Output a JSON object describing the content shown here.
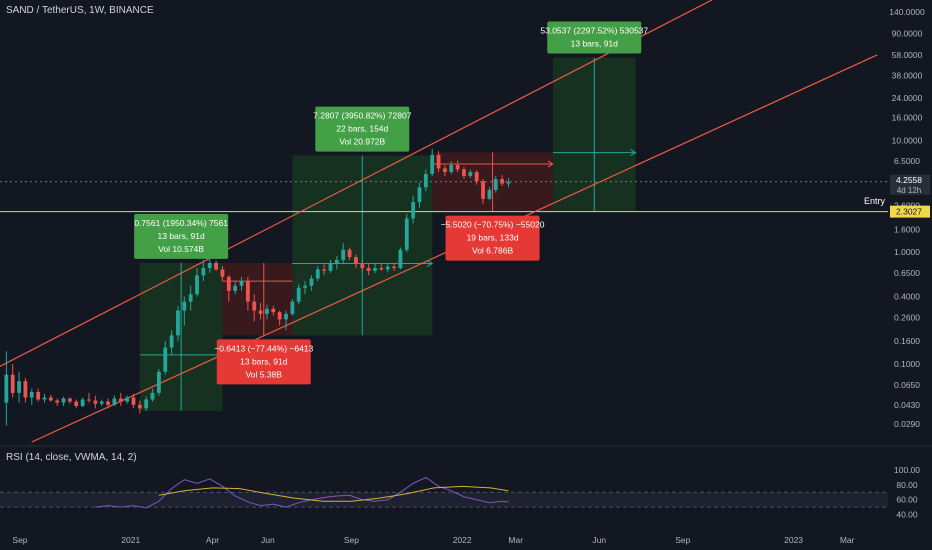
{
  "header": {
    "title": "SAND / TetherUS, 1W, BINANCE"
  },
  "rsi": {
    "title": "RSI (14, close, VWMA, 14, 2)",
    "ticks": [
      "100.00",
      "80.00",
      "60.00",
      "40.00"
    ]
  },
  "price_axis": {
    "ticks": [
      "140.0000",
      "90.0000",
      "58.0000",
      "38.0000",
      "24.0000",
      "16.0000",
      "10.0000",
      "6.5000",
      "2.6000",
      "1.6000",
      "1.0000",
      "0.6500",
      "0.4000",
      "0.2600",
      "0.1600",
      "0.1000",
      "0.0650",
      "0.0430",
      "0.0290"
    ],
    "current_price": "4.2558",
    "countdown": "4d 12h",
    "entry_price": "2.3027",
    "entry_label": "Entry"
  },
  "time_axis": {
    "ticks": [
      "Sep",
      "2021",
      "Apr",
      "Jun",
      "Sep",
      "2022",
      "Mar",
      "Jun",
      "Sep",
      "2023",
      "Mar"
    ]
  },
  "colors": {
    "background": "#131722",
    "up": "#26a69a",
    "down": "#ef5350",
    "channel": "#f05a45",
    "entry_line": "#f0d84a",
    "profit_label": "#43a047",
    "loss_label": "#e53935",
    "profit_zone": "#163321",
    "loss_zone": "#3a1a1e",
    "rsi_line": "#7e57c2",
    "rsi_ma": "#d4b12f"
  },
  "labels": [
    {
      "kind": "profit",
      "lines": [
        "0.7561 (1950.34%) 7561",
        "13 bars, 91d",
        "Vol 10.574B"
      ]
    },
    {
      "kind": "loss",
      "lines": [
        "−0.6413 (−77.44%) −6413",
        "13 bars, 91d",
        "Vol 5.38B"
      ]
    },
    {
      "kind": "profit",
      "lines": [
        "7.2807 (3950.82%) 72807",
        "22 bars, 154d",
        "Vol 20.972B"
      ]
    },
    {
      "kind": "loss",
      "lines": [
        "−5.5020 (−70.75%) −55020",
        "19 bars, 133d",
        "Vol 6.786B"
      ]
    },
    {
      "kind": "profit",
      "lines": [
        "53.0537 (2297.52%) 530537",
        "13 bars, 91d"
      ]
    }
  ],
  "chart_data": {
    "type": "candlestick",
    "symbol": "SAND / TetherUS",
    "interval": "1W",
    "exchange": "BINANCE",
    "y_scale": "log",
    "ylim": [
      0.02,
      180
    ],
    "xlim": [
      "2020-08-10",
      "2023-04-15"
    ],
    "current_price": 4.2558,
    "entry": 2.3027,
    "candles": [
      {
        "date": "2020-08-17",
        "o": 0.045,
        "h": 0.13,
        "l": 0.028,
        "c": 0.08
      },
      {
        "date": "2020-08-24",
        "o": 0.08,
        "h": 0.1,
        "l": 0.05,
        "c": 0.055
      },
      {
        "date": "2020-08-31",
        "o": 0.055,
        "h": 0.085,
        "l": 0.045,
        "c": 0.07
      },
      {
        "date": "2020-09-07",
        "o": 0.07,
        "h": 0.075,
        "l": 0.045,
        "c": 0.05
      },
      {
        "date": "2020-09-14",
        "o": 0.05,
        "h": 0.06,
        "l": 0.043,
        "c": 0.056
      },
      {
        "date": "2020-09-21",
        "o": 0.056,
        "h": 0.06,
        "l": 0.046,
        "c": 0.048
      },
      {
        "date": "2020-09-28",
        "o": 0.048,
        "h": 0.054,
        "l": 0.045,
        "c": 0.05
      },
      {
        "date": "2020-10-05",
        "o": 0.05,
        "h": 0.053,
        "l": 0.046,
        "c": 0.047
      },
      {
        "date": "2020-10-12",
        "o": 0.047,
        "h": 0.049,
        "l": 0.042,
        "c": 0.045
      },
      {
        "date": "2020-10-19",
        "o": 0.045,
        "h": 0.051,
        "l": 0.042,
        "c": 0.049
      },
      {
        "date": "2020-10-26",
        "o": 0.049,
        "h": 0.05,
        "l": 0.044,
        "c": 0.046
      },
      {
        "date": "2020-11-02",
        "o": 0.046,
        "h": 0.048,
        "l": 0.04,
        "c": 0.042
      },
      {
        "date": "2020-11-09",
        "o": 0.042,
        "h": 0.05,
        "l": 0.041,
        "c": 0.048
      },
      {
        "date": "2020-11-16",
        "o": 0.048,
        "h": 0.055,
        "l": 0.045,
        "c": 0.047
      },
      {
        "date": "2020-11-23",
        "o": 0.047,
        "h": 0.052,
        "l": 0.04,
        "c": 0.044
      },
      {
        "date": "2020-11-30",
        "o": 0.044,
        "h": 0.048,
        "l": 0.042,
        "c": 0.046
      },
      {
        "date": "2020-12-07",
        "o": 0.046,
        "h": 0.049,
        "l": 0.04,
        "c": 0.043
      },
      {
        "date": "2020-12-14",
        "o": 0.043,
        "h": 0.052,
        "l": 0.042,
        "c": 0.049
      },
      {
        "date": "2020-12-21",
        "o": 0.049,
        "h": 0.055,
        "l": 0.042,
        "c": 0.046
      },
      {
        "date": "2020-12-28",
        "o": 0.046,
        "h": 0.052,
        "l": 0.044,
        "c": 0.05
      },
      {
        "date": "2021-01-04",
        "o": 0.05,
        "h": 0.054,
        "l": 0.04,
        "c": 0.043
      },
      {
        "date": "2021-01-11",
        "o": 0.043,
        "h": 0.047,
        "l": 0.036,
        "c": 0.04
      },
      {
        "date": "2021-01-18",
        "o": 0.04,
        "h": 0.051,
        "l": 0.038,
        "c": 0.048
      },
      {
        "date": "2021-01-25",
        "o": 0.048,
        "h": 0.06,
        "l": 0.046,
        "c": 0.055
      },
      {
        "date": "2021-02-01",
        "o": 0.055,
        "h": 0.09,
        "l": 0.052,
        "c": 0.085
      },
      {
        "date": "2021-02-08",
        "o": 0.085,
        "h": 0.16,
        "l": 0.08,
        "c": 0.14
      },
      {
        "date": "2021-02-15",
        "o": 0.14,
        "h": 0.2,
        "l": 0.12,
        "c": 0.18
      },
      {
        "date": "2021-02-22",
        "o": 0.18,
        "h": 0.33,
        "l": 0.16,
        "c": 0.3
      },
      {
        "date": "2021-03-01",
        "o": 0.3,
        "h": 0.4,
        "l": 0.22,
        "c": 0.36
      },
      {
        "date": "2021-03-08",
        "o": 0.36,
        "h": 0.5,
        "l": 0.3,
        "c": 0.42
      },
      {
        "date": "2021-03-15",
        "o": 0.42,
        "h": 0.72,
        "l": 0.4,
        "c": 0.62
      },
      {
        "date": "2021-03-22",
        "o": 0.62,
        "h": 0.85,
        "l": 0.55,
        "c": 0.72
      },
      {
        "date": "2021-03-29",
        "o": 0.72,
        "h": 0.88,
        "l": 0.65,
        "c": 0.8
      },
      {
        "date": "2021-04-05",
        "o": 0.8,
        "h": 0.84,
        "l": 0.68,
        "c": 0.7
      },
      {
        "date": "2021-04-12",
        "o": 0.7,
        "h": 0.75,
        "l": 0.55,
        "c": 0.6
      },
      {
        "date": "2021-04-19",
        "o": 0.6,
        "h": 0.62,
        "l": 0.36,
        "c": 0.45
      },
      {
        "date": "2021-04-26",
        "o": 0.45,
        "h": 0.55,
        "l": 0.42,
        "c": 0.5
      },
      {
        "date": "2021-05-03",
        "o": 0.5,
        "h": 0.6,
        "l": 0.45,
        "c": 0.55
      },
      {
        "date": "2021-05-10",
        "o": 0.55,
        "h": 0.6,
        "l": 0.3,
        "c": 0.36
      },
      {
        "date": "2021-05-17",
        "o": 0.36,
        "h": 0.42,
        "l": 0.24,
        "c": 0.3
      },
      {
        "date": "2021-05-24",
        "o": 0.3,
        "h": 0.35,
        "l": 0.25,
        "c": 0.28
      },
      {
        "date": "2021-05-31",
        "o": 0.28,
        "h": 0.34,
        "l": 0.25,
        "c": 0.31
      },
      {
        "date": "2021-06-07",
        "o": 0.31,
        "h": 0.33,
        "l": 0.27,
        "c": 0.29
      },
      {
        "date": "2021-06-14",
        "o": 0.29,
        "h": 0.3,
        "l": 0.22,
        "c": 0.25
      },
      {
        "date": "2021-06-21",
        "o": 0.25,
        "h": 0.3,
        "l": 0.2,
        "c": 0.28
      },
      {
        "date": "2021-06-28",
        "o": 0.28,
        "h": 0.38,
        "l": 0.27,
        "c": 0.36
      },
      {
        "date": "2021-07-05",
        "o": 0.36,
        "h": 0.52,
        "l": 0.34,
        "c": 0.48
      },
      {
        "date": "2021-07-12",
        "o": 0.48,
        "h": 0.55,
        "l": 0.42,
        "c": 0.5
      },
      {
        "date": "2021-07-19",
        "o": 0.5,
        "h": 0.62,
        "l": 0.45,
        "c": 0.58
      },
      {
        "date": "2021-07-26",
        "o": 0.58,
        "h": 0.75,
        "l": 0.55,
        "c": 0.7
      },
      {
        "date": "2021-08-02",
        "o": 0.7,
        "h": 0.78,
        "l": 0.62,
        "c": 0.68
      },
      {
        "date": "2021-08-09",
        "o": 0.68,
        "h": 0.85,
        "l": 0.65,
        "c": 0.8
      },
      {
        "date": "2021-08-16",
        "o": 0.8,
        "h": 0.92,
        "l": 0.7,
        "c": 0.85
      },
      {
        "date": "2021-08-23",
        "o": 0.85,
        "h": 1.2,
        "l": 0.8,
        "c": 1.05
      },
      {
        "date": "2021-08-30",
        "o": 1.05,
        "h": 1.1,
        "l": 0.85,
        "c": 0.9
      },
      {
        "date": "2021-09-06",
        "o": 0.9,
        "h": 0.95,
        "l": 0.72,
        "c": 0.78
      },
      {
        "date": "2021-09-13",
        "o": 0.78,
        "h": 0.85,
        "l": 0.66,
        "c": 0.72
      },
      {
        "date": "2021-09-20",
        "o": 0.72,
        "h": 0.78,
        "l": 0.62,
        "c": 0.68
      },
      {
        "date": "2021-09-27",
        "o": 0.68,
        "h": 0.8,
        "l": 0.65,
        "c": 0.72
      },
      {
        "date": "2021-10-04",
        "o": 0.72,
        "h": 0.78,
        "l": 0.68,
        "c": 0.7
      },
      {
        "date": "2021-10-11",
        "o": 0.7,
        "h": 0.78,
        "l": 0.66,
        "c": 0.74
      },
      {
        "date": "2021-10-18",
        "o": 0.74,
        "h": 0.8,
        "l": 0.68,
        "c": 0.72
      },
      {
        "date": "2021-10-25",
        "o": 0.72,
        "h": 1.1,
        "l": 0.7,
        "c": 1.05
      },
      {
        "date": "2021-11-01",
        "o": 1.05,
        "h": 2.2,
        "l": 1.0,
        "c": 2.0
      },
      {
        "date": "2021-11-08",
        "o": 2.0,
        "h": 3.2,
        "l": 1.8,
        "c": 2.8
      },
      {
        "date": "2021-11-15",
        "o": 2.8,
        "h": 4.2,
        "l": 2.5,
        "c": 3.8
      },
      {
        "date": "2021-11-22",
        "o": 3.8,
        "h": 5.5,
        "l": 3.5,
        "c": 5.0
      },
      {
        "date": "2021-11-29",
        "o": 5.0,
        "h": 8.4,
        "l": 4.8,
        "c": 7.4
      },
      {
        "date": "2021-12-06",
        "o": 7.4,
        "h": 8.0,
        "l": 5.2,
        "c": 5.6
      },
      {
        "date": "2021-12-13",
        "o": 5.6,
        "h": 6.0,
        "l": 4.8,
        "c": 5.2
      },
      {
        "date": "2021-12-20",
        "o": 5.2,
        "h": 6.5,
        "l": 5.0,
        "c": 6.0
      },
      {
        "date": "2021-12-27",
        "o": 6.0,
        "h": 6.6,
        "l": 5.2,
        "c": 5.5
      },
      {
        "date": "2022-01-03",
        "o": 5.5,
        "h": 5.8,
        "l": 4.5,
        "c": 4.8
      },
      {
        "date": "2022-01-10",
        "o": 4.8,
        "h": 5.5,
        "l": 4.6,
        "c": 5.2
      },
      {
        "date": "2022-01-17",
        "o": 5.2,
        "h": 5.4,
        "l": 4.0,
        "c": 4.3
      },
      {
        "date": "2022-01-24",
        "o": 4.3,
        "h": 4.5,
        "l": 2.7,
        "c": 3.0
      },
      {
        "date": "2022-01-31",
        "o": 3.0,
        "h": 3.8,
        "l": 2.9,
        "c": 3.6
      },
      {
        "date": "2022-02-07",
        "o": 3.6,
        "h": 4.8,
        "l": 3.4,
        "c": 4.5
      },
      {
        "date": "2022-02-14",
        "o": 4.5,
        "h": 4.9,
        "l": 3.9,
        "c": 4.1
      },
      {
        "date": "2022-02-21",
        "o": 4.1,
        "h": 4.6,
        "l": 3.8,
        "c": 4.2558
      }
    ],
    "channel_lines": [
      {
        "name": "upper",
        "points": [
          [
            "2020-08-10",
            0.095
          ],
          [
            "2022-10-03",
            180
          ]
        ]
      },
      {
        "name": "lower",
        "points": [
          [
            "2020-09-14",
            0.02
          ],
          [
            "2023-04-03",
            58
          ]
        ]
      }
    ],
    "positions": [
      {
        "kind": "profit",
        "start": "2021-01-11",
        "end": "2021-04-12",
        "low": 0.038,
        "high": 0.8,
        "label": "0.7561 (1950.34%) 7561",
        "bars": 13,
        "days": 91,
        "volume": "10.574B"
      },
      {
        "kind": "loss",
        "start": "2021-04-12",
        "end": "2021-07-12",
        "low": 0.18,
        "high": 0.8,
        "label": "−0.6413 (−77.44%) −6413",
        "bars": 13,
        "days": 91,
        "volume": "5.38B"
      },
      {
        "kind": "profit",
        "start": "2021-06-28",
        "end": "2021-11-29",
        "low": 0.18,
        "high": 7.3,
        "label": "7.2807 (3950.82%) 72807",
        "bars": 22,
        "days": 154,
        "volume": "20.972B"
      },
      {
        "kind": "loss",
        "start": "2021-11-29",
        "end": "2022-04-11",
        "low": 2.3,
        "high": 7.8,
        "label": "−5.5020 (−70.75%) −55020",
        "bars": 19,
        "days": 133,
        "volume": "6.786B"
      },
      {
        "kind": "profit",
        "start": "2022-04-11",
        "end": "2022-07-11",
        "low": 2.3,
        "high": 55,
        "label": "53.0537 (2297.52%) 530537",
        "bars": 13,
        "days": 91
      }
    ],
    "rsi": {
      "ylim": [
        30,
        100
      ],
      "levels": [
        70,
        50
      ],
      "values": [
        [
          "2020-11-23",
          50
        ],
        [
          "2020-12-07",
          52
        ],
        [
          "2020-12-21",
          50
        ],
        [
          "2021-01-04",
          52
        ],
        [
          "2021-01-18",
          49
        ],
        [
          "2021-02-01",
          58
        ],
        [
          "2021-02-15",
          75
        ],
        [
          "2021-03-01",
          87
        ],
        [
          "2021-03-15",
          82
        ],
        [
          "2021-03-29",
          88
        ],
        [
          "2021-04-12",
          78
        ],
        [
          "2021-04-26",
          65
        ],
        [
          "2021-05-10",
          57
        ],
        [
          "2021-05-24",
          52
        ],
        [
          "2021-06-07",
          54
        ],
        [
          "2021-06-21",
          50
        ],
        [
          "2021-07-05",
          56
        ],
        [
          "2021-07-19",
          60
        ],
        [
          "2021-08-02",
          63
        ],
        [
          "2021-08-16",
          65
        ],
        [
          "2021-08-30",
          66
        ],
        [
          "2021-09-13",
          60
        ],
        [
          "2021-09-27",
          58
        ],
        [
          "2021-10-11",
          60
        ],
        [
          "2021-10-25",
          70
        ],
        [
          "2021-11-08",
          82
        ],
        [
          "2021-11-22",
          90
        ],
        [
          "2021-12-06",
          78
        ],
        [
          "2021-12-20",
          72
        ],
        [
          "2022-01-03",
          64
        ],
        [
          "2022-01-17",
          60
        ],
        [
          "2022-01-31",
          56
        ],
        [
          "2022-02-14",
          58
        ],
        [
          "2022-02-21",
          57
        ]
      ],
      "ma": [
        [
          "2021-02-01",
          66
        ],
        [
          "2021-03-01",
          72
        ],
        [
          "2021-04-01",
          76
        ],
        [
          "2021-05-01",
          75
        ],
        [
          "2021-06-01",
          68
        ],
        [
          "2021-07-01",
          62
        ],
        [
          "2021-08-01",
          58
        ],
        [
          "2021-09-01",
          58
        ],
        [
          "2021-10-01",
          62
        ],
        [
          "2021-11-01",
          68
        ],
        [
          "2021-12-01",
          76
        ],
        [
          "2022-01-01",
          78
        ],
        [
          "2022-02-01",
          76
        ],
        [
          "2022-02-21",
          72
        ]
      ]
    }
  }
}
